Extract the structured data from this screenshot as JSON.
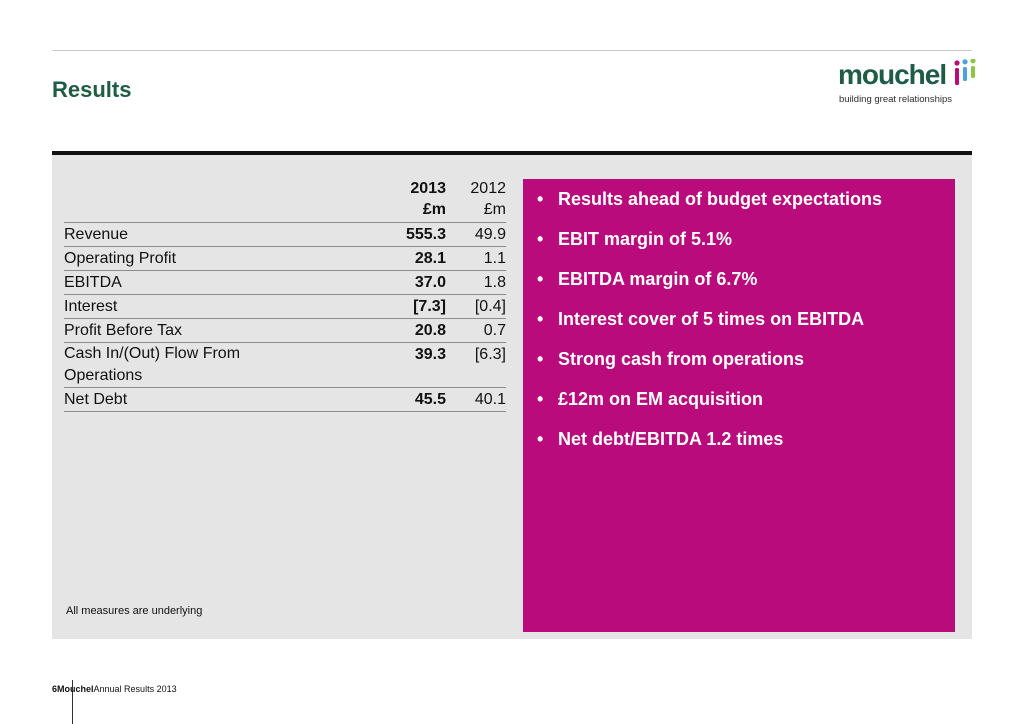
{
  "slide": {
    "title": "Results",
    "note": "All measures are underlying"
  },
  "logo": {
    "word": "mouchel",
    "tagline": "building great relationships",
    "mark_colors": [
      "#b90b7c",
      "#4aa3df",
      "#8dc63f"
    ]
  },
  "colors": {
    "title": "#1e5c45",
    "panel": "#e5e5e5",
    "highlight": "#b90b7c"
  },
  "table": {
    "header": {
      "col2013": "2013\n£m",
      "col2012": "2012\n£m"
    },
    "rows": [
      {
        "label": "Revenue",
        "v2013": "555.3",
        "v2012": "49.9"
      },
      {
        "label": "Operating Profit",
        "v2013": "28.1",
        "v2012": "1.1"
      },
      {
        "label": "EBITDA",
        "v2013": "37.0",
        "v2012": "1.8"
      },
      {
        "label": "Interest",
        "v2013": "[7.3]",
        "v2012": "[0.4]"
      },
      {
        "label": "Profit Before Tax",
        "v2013": "20.8",
        "v2012": "0.7"
      },
      {
        "label": "Cash In/(Out) Flow From Operations",
        "v2013": "39.3",
        "v2012": "[6.3]"
      },
      {
        "label": "Net Debt",
        "v2013": "45.5",
        "v2012": "40.1"
      }
    ]
  },
  "highlights": [
    "Results ahead of budget expectations",
    "EBIT margin of 5.1%",
    "EBITDA margin of 6.7%",
    "Interest cover of 5 times on EBITDA",
    "Strong cash from operations",
    "£12m on EM acquisition",
    "Net debt/EBITDA 1.2 times"
  ],
  "footer": {
    "page_number": "6",
    "company": "Mouchel",
    "doc_title": "Annual Results 2013"
  }
}
